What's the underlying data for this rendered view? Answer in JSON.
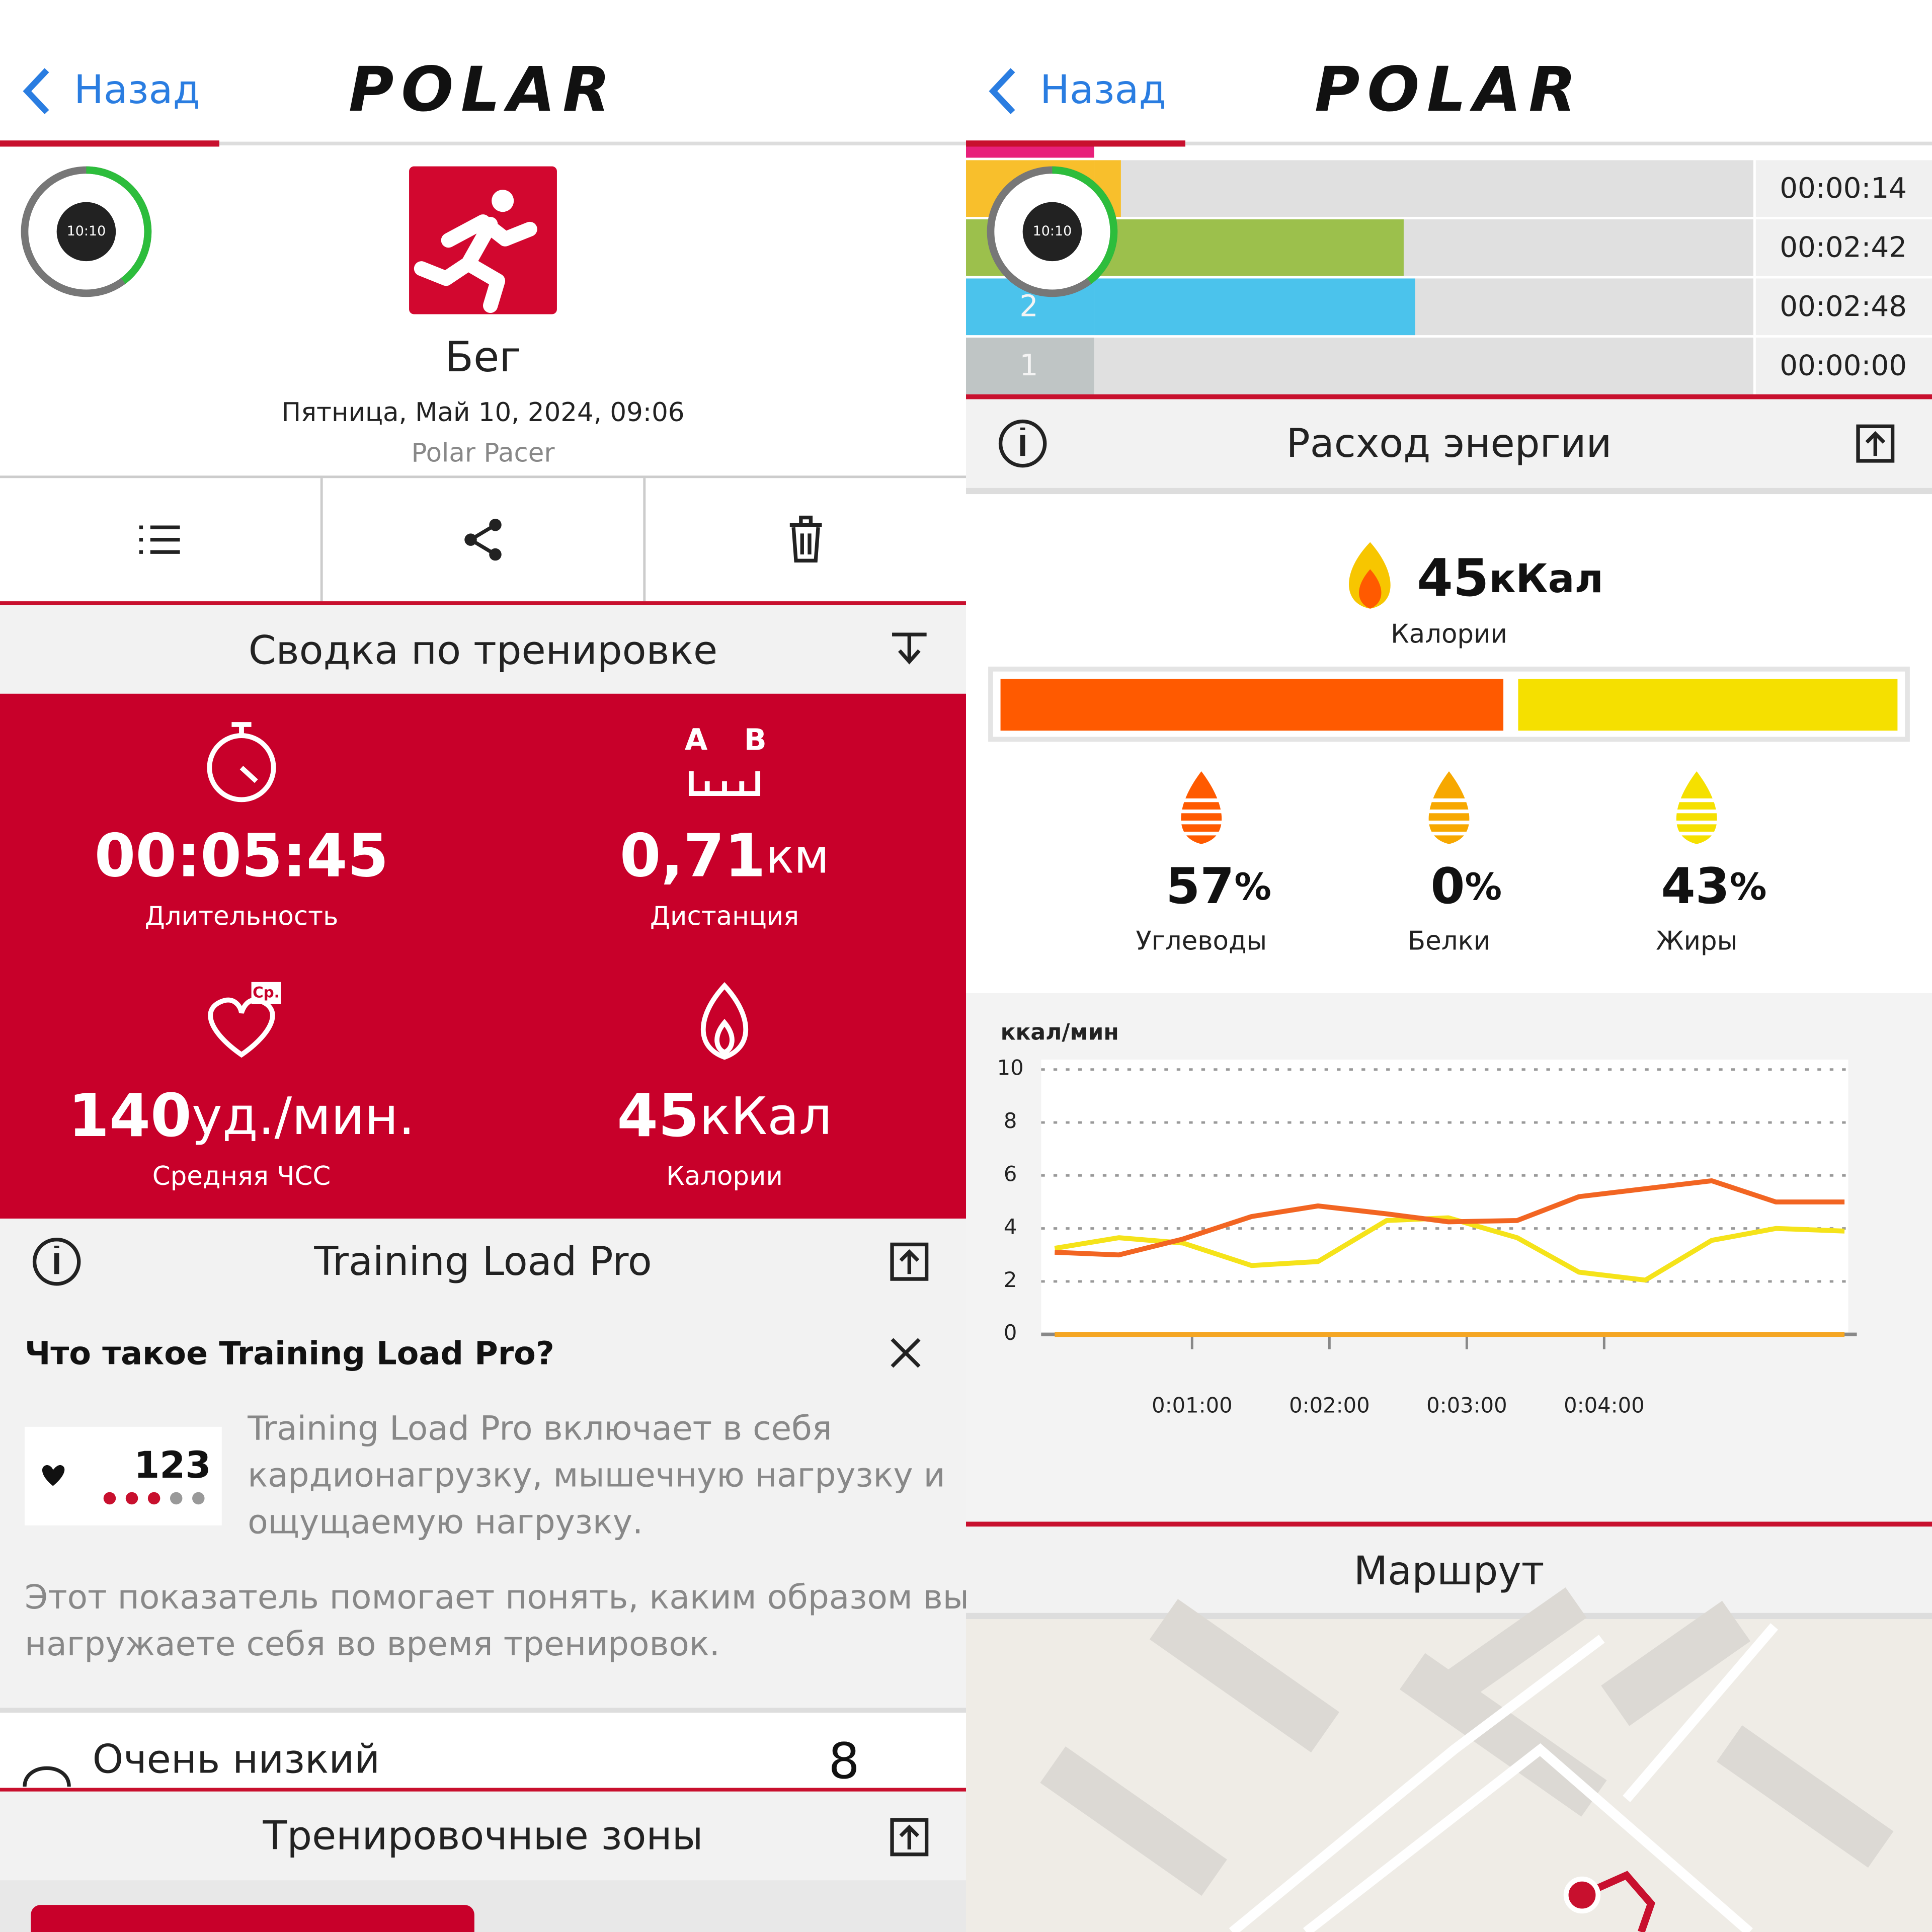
{
  "header": {
    "back": "Назад",
    "logo": "POLAR"
  },
  "left": {
    "watch": "10:10",
    "sport": "Бег",
    "date": "Пятница, Май 10, 2024, 09:06",
    "device": "Polar Pacer",
    "summary": {
      "title": "Сводка по тренировке",
      "a": "A",
      "b": "B",
      "avg": "Ср.",
      "duration": {
        "value": "00:05:45",
        "label": "Длительность"
      },
      "distance": {
        "value": "0,71",
        "unit": "км",
        "label": "Дистанция"
      },
      "heart_rate": {
        "value": "140",
        "unit": "уд./мин.",
        "label": "Средняя ЧСС"
      },
      "calories": {
        "value": "45",
        "unit": "кКал",
        "label": "Калории"
      }
    },
    "training_load": {
      "title": "Training Load Pro",
      "question": "Что такое Training Load Pro?",
      "badge": "123",
      "description": [
        "Training Load Pro включает в себя",
        "кардионагрузку, мышечную нагрузку и",
        "ощущаемую нагрузку."
      ],
      "note": [
        "Этот показатель помогает понять, каким образом вы",
        "нагружаете себя во время тренировок."
      ],
      "level": "Очень низкий",
      "level_value": "8"
    },
    "zones_title": "Тренировочные зоны"
  },
  "right": {
    "zones": {
      "xlim": [
        0,
        345
      ],
      "rows": [
        {
          "zone": null,
          "seconds": 14,
          "time": "00:00:14",
          "color": "#f8bf2c"
        },
        {
          "zone": null,
          "seconds": 162,
          "time": "00:02:42",
          "color": "#9cc04c"
        },
        {
          "zone": "2",
          "seconds": 168,
          "time": "00:02:48",
          "color": "#4bc3ec"
        },
        {
          "zone": "1",
          "seconds": 0,
          "time": "00:00:00",
          "color": "#bfc5c5"
        }
      ]
    },
    "energy": {
      "title": "Расход энергии",
      "total": "45",
      "unit": "кКал",
      "label": "Калории",
      "percent_sign": "%",
      "parts": [
        {
          "value": 57,
          "name": "Углеводы",
          "color": "#ff5a00"
        },
        {
          "value": 0,
          "name": "Белки",
          "color": "#f7a800"
        },
        {
          "value": 43,
          "name": "Жиры",
          "color": "#f5e000"
        }
      ]
    },
    "route_title": "Маршрут"
  },
  "chart_data": {
    "type": "line",
    "y_label": "ккал/мин",
    "x": [
      0,
      28,
      56,
      86,
      115,
      145,
      172,
      202,
      229,
      258,
      287,
      315,
      345
    ],
    "series": [
      {
        "color": "#f26522",
        "values": [
          3.1,
          3.0,
          3.6,
          4.45,
          4.85,
          4.55,
          4.25,
          4.3,
          5.2,
          5.5,
          5.8,
          5.0,
          5.0
        ]
      },
      {
        "color": "#f5e31a",
        "values": [
          3.25,
          3.65,
          3.45,
          2.6,
          2.75,
          4.3,
          4.4,
          3.65,
          2.35,
          2.05,
          3.55,
          4.0,
          3.9
        ]
      },
      {
        "color": "#f5a623",
        "values": [
          0,
          0,
          0,
          0,
          0,
          0,
          0,
          0,
          0,
          0,
          0,
          0,
          0
        ]
      }
    ],
    "xlim": [
      0,
      345
    ],
    "ylim": [
      0,
      10
    ],
    "yticks": [
      0,
      2,
      4,
      6,
      8,
      10
    ],
    "xticks": [
      {
        "value": 60,
        "label": "0:01:00"
      },
      {
        "value": 120,
        "label": "0:02:00"
      },
      {
        "value": 180,
        "label": "0:03:00"
      },
      {
        "value": 240,
        "label": "0:04:00"
      }
    ],
    "grid": true
  }
}
